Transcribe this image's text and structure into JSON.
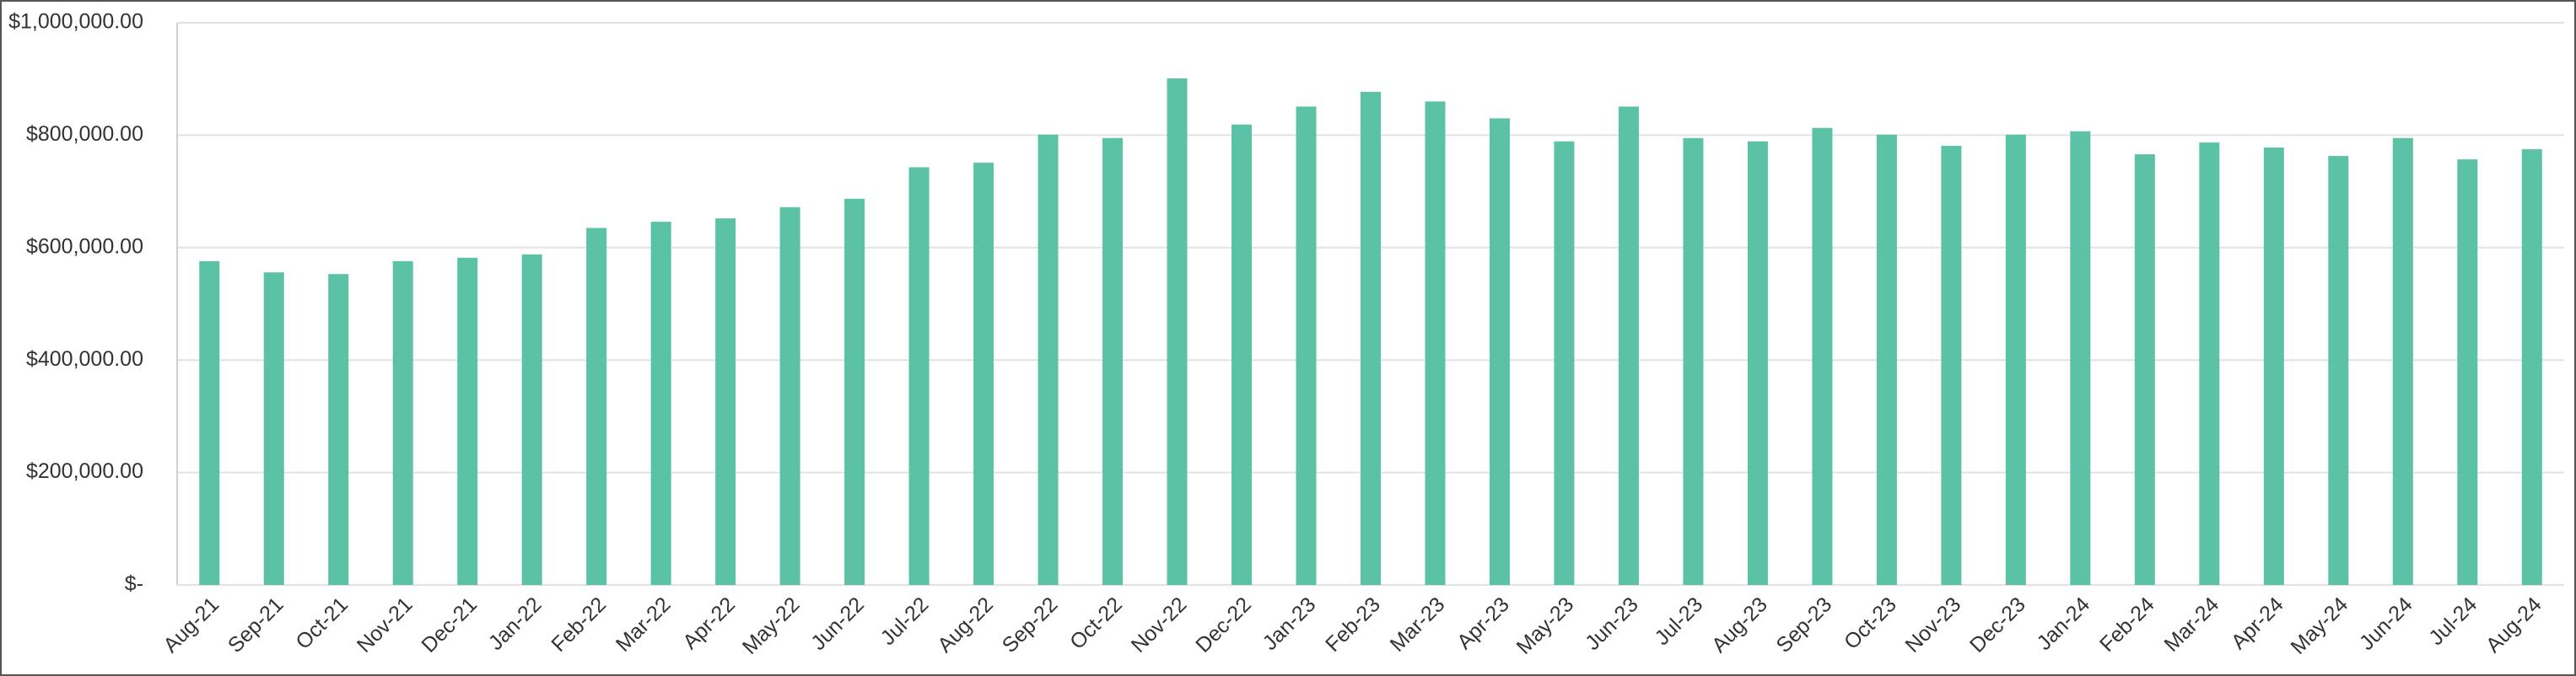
{
  "chart_data": {
    "type": "bar",
    "categories": [
      "Aug-21",
      "Sep-21",
      "Oct-21",
      "Nov-21",
      "Dec-21",
      "Jan-22",
      "Feb-22",
      "Mar-22",
      "Apr-22",
      "May-22",
      "Jun-22",
      "Jul-22",
      "Aug-22",
      "Sep-22",
      "Oct-22",
      "Nov-22",
      "Dec-22",
      "Jan-23",
      "Feb-23",
      "Mar-23",
      "Apr-23",
      "May-23",
      "Jun-23",
      "Jul-23",
      "Aug-23",
      "Sep-23",
      "Oct-23",
      "Nov-23",
      "Dec-23",
      "Jan-24",
      "Feb-24",
      "Mar-24",
      "Apr-24",
      "May-24",
      "Jun-24",
      "Jul-24",
      "Aug-24"
    ],
    "values": [
      576000,
      556000,
      553000,
      576000,
      582000,
      588000,
      635000,
      646000,
      652000,
      672000,
      687000,
      743000,
      751000,
      801000,
      795000,
      901000,
      819000,
      851000,
      877000,
      860000,
      830000,
      789000,
      851000,
      795000,
      789000,
      813000,
      801000,
      781000,
      801000,
      807000,
      766000,
      787000,
      778000,
      763000,
      795000,
      757000,
      775000
    ],
    "color": "#5bc2a5",
    "ylim": [
      0,
      1000000
    ],
    "yticks": [
      {
        "value": 0,
        "label": "$-"
      },
      {
        "value": 200000,
        "label": "$200,000.00"
      },
      {
        "value": 400000,
        "label": "$400,000.00"
      },
      {
        "value": 600000,
        "label": "$600,000.00"
      },
      {
        "value": 800000,
        "label": "$800,000.00"
      },
      {
        "value": 1000000,
        "label": "$1,000,000.00"
      }
    ],
    "grid": true
  }
}
